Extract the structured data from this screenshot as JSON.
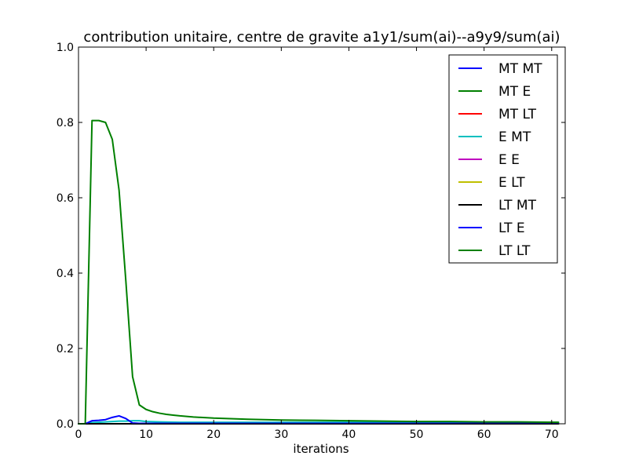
{
  "chart_data": {
    "type": "line",
    "title": "contribution unitaire, centre de gravite a1y1/sum(ai)--a9y9/sum(ai)",
    "xlabel": "iterations",
    "ylabel": "",
    "xlim": [
      0,
      72
    ],
    "ylim": [
      0,
      1.0
    ],
    "xticks": [
      0,
      10,
      20,
      30,
      40,
      50,
      60,
      70
    ],
    "yticks": [
      0.0,
      0.2,
      0.4,
      0.6,
      0.8,
      1.0
    ],
    "xtick_labels": [
      "0",
      "10",
      "20",
      "30",
      "40",
      "50",
      "60",
      "70"
    ],
    "ytick_labels": [
      "0.0",
      "0.2",
      "0.4",
      "0.6",
      "0.8",
      "1.0"
    ],
    "grid": false,
    "legend_position": "top-right",
    "series": [
      {
        "name": "MT MT",
        "color": "#0000ff",
        "x": [
          0,
          1,
          71
        ],
        "y": [
          0,
          0,
          0
        ]
      },
      {
        "name": "MT E",
        "color": "#008000",
        "x": [
          0,
          1,
          71
        ],
        "y": [
          0,
          0,
          0
        ]
      },
      {
        "name": "MT LT",
        "color": "#ff0000",
        "x": [
          0,
          1,
          71
        ],
        "y": [
          0,
          0,
          0
        ]
      },
      {
        "name": "E MT",
        "color": "#00bfbf",
        "x": [
          0,
          1,
          2,
          3,
          4,
          5,
          6,
          7,
          8,
          9,
          10,
          12,
          15,
          20,
          30,
          40,
          50,
          60,
          71
        ],
        "y": [
          0,
          0,
          0.003,
          0.004,
          0.005,
          0.006,
          0.007,
          0.007,
          0.008,
          0.008,
          0.006,
          0.005,
          0.004,
          0.004,
          0.004,
          0.004,
          0.004,
          0.004,
          0.004
        ]
      },
      {
        "name": "E E",
        "color": "#bf00bf",
        "x": [
          0,
          1,
          71
        ],
        "y": [
          0,
          0,
          0
        ]
      },
      {
        "name": "E LT",
        "color": "#bfbf00",
        "x": [
          0,
          1,
          71
        ],
        "y": [
          0,
          0,
          0
        ]
      },
      {
        "name": "LT MT",
        "color": "#000000",
        "x": [
          0,
          1,
          71
        ],
        "y": [
          0,
          0,
          0
        ]
      },
      {
        "name": "LT E",
        "color": "#0000ff",
        "x": [
          0,
          1,
          2,
          3,
          4,
          5,
          6,
          7,
          8,
          9,
          10,
          15,
          20,
          30,
          40,
          50,
          60,
          71
        ],
        "y": [
          0,
          0,
          0.008,
          0.009,
          0.011,
          0.017,
          0.021,
          0.014,
          0.002,
          0.001,
          0.001,
          0.001,
          0.001,
          0.001,
          0.001,
          0.001,
          0.001,
          0.001
        ]
      },
      {
        "name": "LT LT",
        "color": "#008000",
        "x": [
          0,
          1,
          2,
          3,
          4,
          5,
          6,
          7,
          8,
          9,
          10,
          11,
          12,
          13,
          14,
          15,
          17,
          20,
          25,
          30,
          35,
          40,
          45,
          50,
          55,
          60,
          65,
          71
        ],
        "y": [
          0,
          0,
          0.805,
          0.805,
          0.8,
          0.755,
          0.62,
          0.38,
          0.125,
          0.05,
          0.038,
          0.032,
          0.028,
          0.025,
          0.023,
          0.021,
          0.018,
          0.015,
          0.012,
          0.01,
          0.009,
          0.008,
          0.007,
          0.006,
          0.006,
          0.005,
          0.005,
          0.004
        ]
      }
    ]
  }
}
